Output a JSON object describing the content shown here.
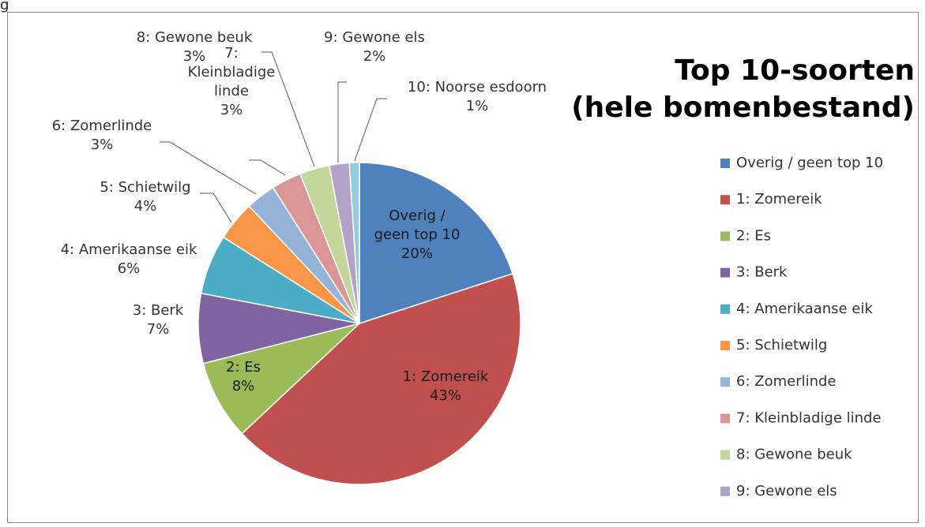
{
  "corner_text": "g",
  "chart_data": {
    "type": "pie",
    "title_lines": [
      "Top 10-soorten",
      "(hele bomenbestand)"
    ],
    "start_angle_deg": 0,
    "direction": "clockwise",
    "legend_position": "right",
    "slices": [
      {
        "label": "Overig / geen top 10",
        "value": 20,
        "display": "20%",
        "color": "#4F81BD",
        "data_label": [
          "Overig /",
          "geen top 10",
          "20%"
        ],
        "label_inside": true
      },
      {
        "label": "1: Zomereik",
        "value": 43,
        "display": "43%",
        "color": "#C0504D",
        "data_label": [
          "1: Zomereik",
          "43%"
        ],
        "label_inside": true
      },
      {
        "label": "2: Es",
        "value": 8,
        "display": "8%",
        "color": "#9BBB59",
        "data_label": [
          "2: Es",
          "8%"
        ],
        "label_inside": true
      },
      {
        "label": "3: Berk",
        "value": 7,
        "display": "7%",
        "color": "#8064A2",
        "data_label": [
          "3: Berk",
          "7%"
        ],
        "label_inside": false
      },
      {
        "label": "4: Amerikaanse eik",
        "value": 6,
        "display": "6%",
        "color": "#4BACC6",
        "data_label": [
          "4: Amerikaanse eik",
          "6%"
        ],
        "label_inside": false
      },
      {
        "label": "5: Schietwilg",
        "value": 4,
        "display": "4%",
        "color": "#F79646",
        "data_label": [
          "5: Schietwilg",
          "4%"
        ],
        "label_inside": false
      },
      {
        "label": "6: Zomerlinde",
        "value": 3,
        "display": "3%",
        "color": "#95B3D7",
        "data_label": [
          "6: Zomerlinde",
          "3%"
        ],
        "label_inside": false
      },
      {
        "label": "7: Kleinbladige linde",
        "value": 3,
        "display": "3%",
        "color": "#D99694",
        "data_label": [
          "7:",
          "Kleinbladige",
          "linde",
          "3%"
        ],
        "label_inside": false
      },
      {
        "label": "8: Gewone beuk",
        "value": 3,
        "display": "3%",
        "color": "#C3D69B",
        "data_label": [
          "8: Gewone beuk",
          "3%"
        ],
        "label_inside": false
      },
      {
        "label": "9: Gewone els",
        "value": 2,
        "display": "2%",
        "color": "#B2A2C7",
        "data_label": [
          "9: Gewone els",
          "2%"
        ],
        "label_inside": false
      },
      {
        "label": "10: Noorse esdoorn",
        "value": 1,
        "display": "1%",
        "color": "#93CDDD",
        "data_label": [
          "10: Noorse esdoorn",
          "1%"
        ],
        "label_inside": false
      }
    ],
    "legend_entries": [
      "Overig / geen top 10",
      "1: Zomereik",
      "2: Es",
      "3: Berk",
      "4: Amerikaanse eik",
      "5: Schietwilg",
      "6: Zomerlinde",
      "7: Kleinbladige linde",
      "8: Gewone beuk",
      "9: Gewone els"
    ]
  }
}
